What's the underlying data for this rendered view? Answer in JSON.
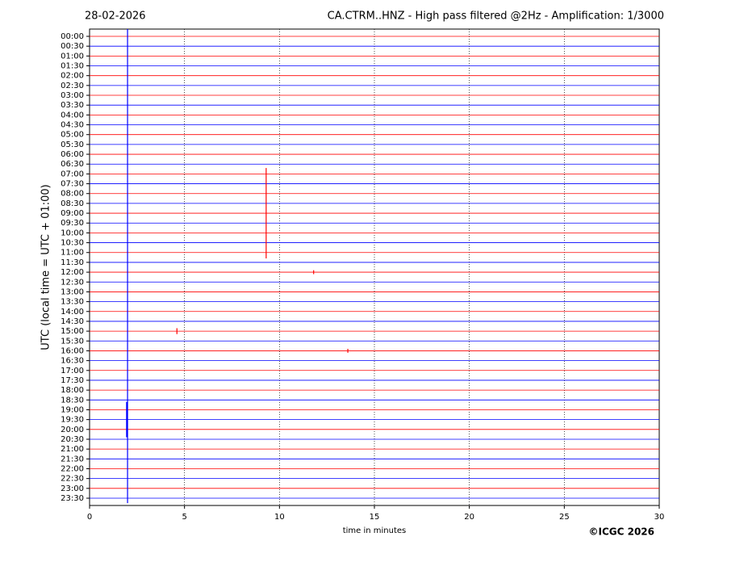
{
  "chart_data": {
    "type": "helicorder",
    "date": "28-02-2026",
    "title": "CA.CTRM..HNZ - High pass filtered @2Hz - Amplification: 1/3000",
    "y_label": "UTC (local time = UTC + 01:00)",
    "x_label": "time in minutes",
    "copyright": "©ICGC 2026",
    "categories": [
      "00:00",
      "00:30",
      "01:00",
      "01:30",
      "02:00",
      "02:30",
      "03:00",
      "03:30",
      "04:00",
      "04:30",
      "05:00",
      "05:30",
      "06:00",
      "06:30",
      "07:00",
      "07:30",
      "08:00",
      "08:30",
      "09:00",
      "09:30",
      "10:00",
      "10:30",
      "11:00",
      "11:30",
      "12:00",
      "12:30",
      "13:00",
      "13:30",
      "14:00",
      "14:30",
      "15:00",
      "15:30",
      "16:00",
      "16:30",
      "17:00",
      "17:30",
      "18:00",
      "18:30",
      "19:00",
      "19:30",
      "20:00",
      "20:30",
      "21:00",
      "21:30",
      "22:00",
      "22:30",
      "23:00",
      "23:30"
    ],
    "colors": [
      "#ff0000",
      "#0000ff"
    ],
    "xlim": [
      0,
      30
    ],
    "xticks": [
      0,
      5,
      10,
      15,
      20,
      25,
      30
    ],
    "grid": true,
    "events": [
      {
        "row": "09:00",
        "x": 9.3,
        "amplitude": 4.6
      },
      {
        "row": "11:30",
        "x": 2.0,
        "amplitude": 24.5
      },
      {
        "row": "19:30",
        "x": 1.95,
        "amplitude": 1.8
      },
      {
        "row": "15:00",
        "x": 4.6,
        "amplitude": 0.3
      },
      {
        "row": "16:00",
        "x": 13.6,
        "amplitude": 0.2
      },
      {
        "row": "12:00",
        "x": 11.8,
        "amplitude": 0.2
      }
    ]
  }
}
